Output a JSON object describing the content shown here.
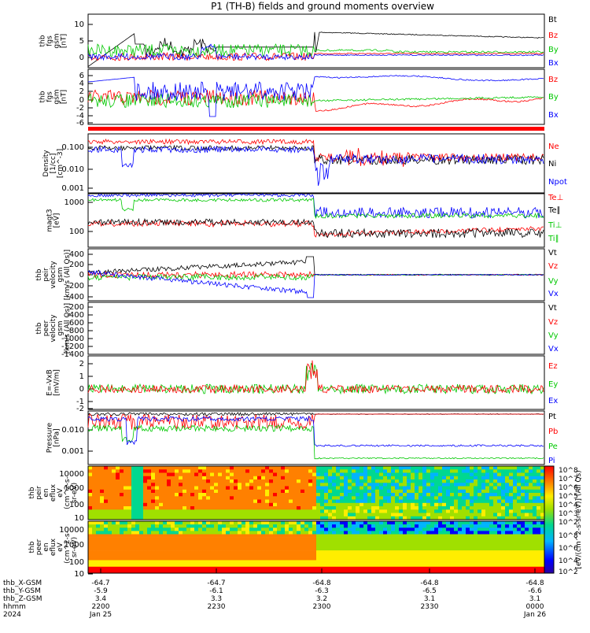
{
  "title": "P1 (TH-B) fields and ground moments overview",
  "colors": {
    "black": "#000000",
    "red": "#ff0000",
    "green": "#00c800",
    "blue": "#0000ff"
  },
  "chart_data": [
    {
      "id": "p1",
      "type": "line",
      "ylabel": [
        "thb",
        "fgs",
        "gsm",
        "[nT]"
      ],
      "yticks": [
        "10",
        "5",
        "0"
      ],
      "legend": [
        {
          "name": "Bt",
          "color": "black"
        },
        {
          "name": "Bz",
          "color": "red"
        },
        {
          "name": "By",
          "color": "green"
        },
        {
          "name": "Bx",
          "color": "blue"
        }
      ]
    },
    {
      "id": "p2",
      "type": "line",
      "ylabel": [
        "thb",
        "fgs",
        "gsm",
        "[nT]"
      ],
      "yticks": [
        "6",
        "4",
        "2",
        "0",
        "-2",
        "-4",
        "-6"
      ],
      "legend": [
        {
          "name": "Bz",
          "color": "red"
        },
        {
          "name": "By",
          "color": "green"
        },
        {
          "name": "Bx",
          "color": "blue"
        }
      ]
    },
    {
      "id": "p3",
      "type": "line",
      "ylabel": [
        "Density",
        "[1/cc]",
        "[cm^-3]"
      ],
      "yticks": [
        "0.100",
        "0.010",
        "0.001"
      ],
      "yscale": "log",
      "legend": [
        {
          "name": "Ne",
          "color": "red"
        },
        {
          "name": "Ni",
          "color": "black"
        },
        {
          "name": "Npot",
          "color": "blue"
        }
      ]
    },
    {
      "id": "p4",
      "type": "line",
      "ylabel": [
        "magt3",
        "[eV]"
      ],
      "yticks": [
        "1000",
        "100"
      ],
      "yscale": "log",
      "legend": [
        {
          "name": "Te⊥",
          "color": "red"
        },
        {
          "name": "Te∥",
          "color": "black"
        },
        {
          "name": "Ti⊥",
          "color": "green"
        },
        {
          "name": "Ti∥",
          "color": "green"
        }
      ]
    },
    {
      "id": "p5",
      "type": "line",
      "ylabel": [
        "thb",
        "peir",
        "velocity",
        "gsm",
        "[km/s (All Qs)]"
      ],
      "yticks": [
        "400",
        "200",
        "0",
        "-200",
        "-400"
      ],
      "legend": [
        {
          "name": "Vt",
          "color": "black"
        },
        {
          "name": "Vz",
          "color": "red"
        },
        {
          "name": "Vy",
          "color": "green"
        },
        {
          "name": "Vx",
          "color": "blue"
        }
      ]
    },
    {
      "id": "p6",
      "type": "line",
      "ylabel": [
        "thb",
        "peer",
        "velocity",
        "gsm",
        "[km/s (All Qs)]"
      ],
      "yticks": [
        "-200",
        "-400",
        "-600",
        "-800",
        "-1000",
        "-1200",
        "-1400"
      ],
      "legend": [
        {
          "name": "Vt",
          "color": "black"
        },
        {
          "name": "Vz",
          "color": "red"
        },
        {
          "name": "Vy",
          "color": "green"
        },
        {
          "name": "Vx",
          "color": "blue"
        }
      ]
    },
    {
      "id": "p7",
      "type": "line",
      "ylabel": [
        "E=-VxB",
        "[mV/m]"
      ],
      "yticks": [
        "2",
        "1",
        "0",
        "-1",
        "-2"
      ],
      "legend": [
        {
          "name": "Ez",
          "color": "red"
        },
        {
          "name": "Ey",
          "color": "green"
        },
        {
          "name": "Ex",
          "color": "blue"
        }
      ]
    },
    {
      "id": "p8",
      "type": "line",
      "ylabel": [
        "Pressure",
        "[nPa]"
      ],
      "yticks": [
        "0.010",
        "0.001"
      ],
      "yscale": "log",
      "legend": [
        {
          "name": "Pt",
          "color": "black"
        },
        {
          "name": "Pb",
          "color": "red"
        },
        {
          "name": "Pe",
          "color": "green"
        },
        {
          "name": "Pi",
          "color": "blue"
        }
      ]
    },
    {
      "id": "p9",
      "type": "heatmap",
      "ylabel": [
        "thb",
        "peir",
        "en",
        "eflux",
        "eV",
        "(cm^2-s-",
        "sr-eV)"
      ],
      "yticks": [
        "10000",
        "1000",
        "100",
        "10"
      ]
    },
    {
      "id": "p10",
      "type": "heatmap",
      "ylabel": [
        "thb",
        "peer",
        "en",
        "eflux",
        "eV",
        "(cm^2-s-",
        "sr-eV)"
      ],
      "yticks": [
        "10000",
        "1000",
        "100",
        "10"
      ]
    }
  ],
  "colorbar": {
    "label": "[eV/(cm^2-s-sr-eV)] (All Qs)",
    "upper_ticks": [
      "10^8",
      "10^7",
      "10^6",
      "10^5",
      "10^4",
      "10^3",
      "10^2"
    ],
    "lower_ticks": [
      "10^8",
      "10^6",
      "10^4",
      "10^2"
    ]
  },
  "ephemeris": {
    "rows": [
      {
        "label": "thb_X-GSM",
        "values": [
          "-64.7",
          "-64.7",
          "-64.8",
          "-64.8",
          "-64.8"
        ]
      },
      {
        "label": "thb_Y-GSM",
        "values": [
          "-5.9",
          "-6.1",
          "-6.3",
          "-6.5",
          "-6.6"
        ]
      },
      {
        "label": "thb_Z-GSM",
        "values": [
          "3.4",
          "3.3",
          "3.2",
          "3.1",
          "3.1"
        ]
      },
      {
        "label": "hhmm",
        "values": [
          "2200",
          "2230",
          "2300",
          "2330",
          "0000"
        ]
      },
      {
        "label": "2024",
        "values": [
          "Jan 25",
          "",
          "",
          "",
          "Jan 26"
        ]
      }
    ]
  }
}
